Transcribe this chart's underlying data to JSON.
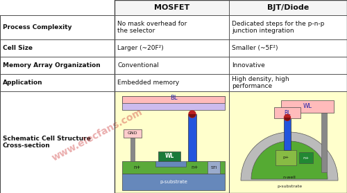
{
  "col_headers": [
    "MOSFET",
    "BJT/Diode"
  ],
  "row_headers": [
    "Process Complexity",
    "Cell Size",
    "Memory Array Organization",
    "Application",
    "Schematic Cell Structure\nCross-section"
  ],
  "mosfet_data": [
    "No mask overhead for\nthe selector",
    "Larger (~20F²)",
    "Conventional",
    "Embedded memory"
  ],
  "bjt_data": [
    "Dedicated steps for the p-n-p\njunction integration",
    "Smaller (~5F²)",
    "Innovative",
    "High density, high\nperformance"
  ],
  "bg_color": "#ffffff",
  "diagram_bg": "#ffffcc",
  "watermark_color": "#cc3333",
  "watermark_text": "www.elecfans.com",
  "col0": 0,
  "col1": 165,
  "col2": 330,
  "col3": 500,
  "row0": 0,
  "row1": 22,
  "row2": 57,
  "row3": 82,
  "row4": 107,
  "row5": 132,
  "row6": 279,
  "header_fs": 8,
  "cell_fs": 6.5,
  "label_fs": 6.5
}
